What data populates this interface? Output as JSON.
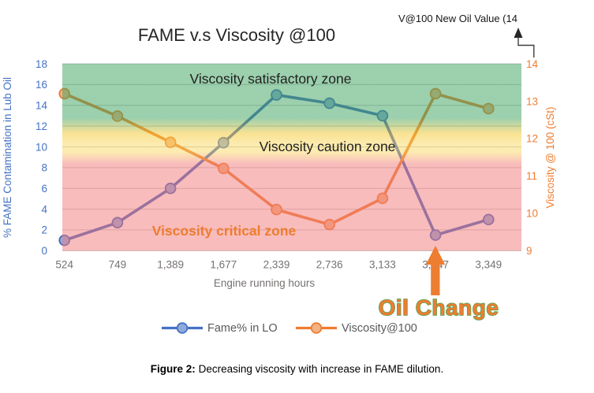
{
  "title": "FAME v.s Viscosity @100",
  "top_callout": {
    "label": "V@100 New Oil Value (14"
  },
  "zones": {
    "satisfactory_label": "Viscosity satisfactory zone",
    "caution_label": "Viscosity caution zone",
    "critical_label": "Viscosity critical zone",
    "green": "#40A462",
    "yellow_edge": "#F6C628",
    "yellow": "#F9D65A",
    "pink": "#F27A7A"
  },
  "oil_change": {
    "label": "Oil Change",
    "text_color": "#ED7D31",
    "outline_color": "#4DA14D",
    "arrow_color": "#ED7D31",
    "points_at_category": "3,147"
  },
  "axes": {
    "left_title": "% FAME Contamination in Lub Oil",
    "right_title": "Viscosity @ 100 (cSt)",
    "x_title": "Engine running hours",
    "left_color": "#4472C4",
    "right_color": "#ED7D31",
    "x_color": "#767171"
  },
  "legend": {
    "items": [
      {
        "label": "Fame% in LO",
        "color": "#4472C4",
        "fill": "#8FAADC"
      },
      {
        "label": "Viscosity@100",
        "color": "#ED7D31",
        "fill": "#F4B183"
      }
    ],
    "text_color": "#595959"
  },
  "caption": {
    "prefix": "Figure 2:",
    "rest": " Decreasing viscosity with increase in FAME dilution."
  },
  "chart_data": {
    "type": "line",
    "title": "FAME v.s Viscosity @100",
    "x_categories": [
      "524",
      "749",
      "1,389",
      "1,677",
      "2,339",
      "2,736",
      "3,133",
      "3,147",
      "3,349"
    ],
    "xlabel": "Engine running hours",
    "ylabel_left": "% FAME Contamination in Lub Oil",
    "ylabel_right": "Viscosity @ 100 (cSt)",
    "left_axis": {
      "min": 0,
      "max": 18,
      "ticks": [
        0,
        2,
        4,
        6,
        8,
        10,
        12,
        14,
        16,
        18
      ]
    },
    "right_axis": {
      "min": 9,
      "max": 14,
      "ticks": [
        9,
        10,
        11,
        12,
        13,
        14
      ]
    },
    "series": [
      {
        "name": "Fame% in LO",
        "axis": "left",
        "color": "#4468C0",
        "marker_fill": "#8FAADC",
        "values": [
          1,
          2.7,
          6,
          10.4,
          15,
          14.2,
          13,
          1.5,
          3
        ]
      },
      {
        "name": "Viscosity@100",
        "axis": "right",
        "color": "#ED7D31",
        "marker_fill": "#F4B183",
        "values": [
          13.2,
          12.6,
          11.9,
          11.2,
          10.1,
          9.7,
          10.4,
          13.2,
          12.8
        ]
      }
    ],
    "zone_bands_right_axis": [
      {
        "label": "Viscosity satisfactory zone",
        "from": 12.4,
        "to": 14
      },
      {
        "label": "Viscosity caution zone",
        "from": 11.3,
        "to": 12.4
      },
      {
        "label": "Viscosity critical zone",
        "from": 9,
        "to": 11.3
      }
    ],
    "annotations": [
      "Oil Change",
      "V@100 New Oil Value (14"
    ],
    "legend_position": "bottom",
    "grid": true
  }
}
